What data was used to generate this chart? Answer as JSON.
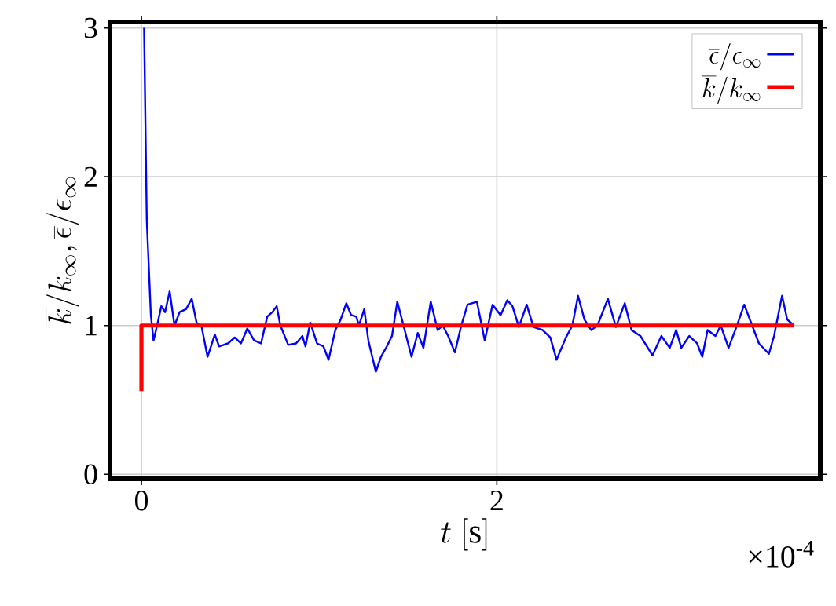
{
  "chart_data": {
    "type": "line",
    "xlabel": "t\\ [\\mathrm{s}]",
    "ylabel": "\\overline{k}/k_\\infty, \\overline{\\epsilon}/\\epsilon_\\infty",
    "xlim": [
      -0.177,
      3.82
    ],
    "xticks": [
      0,
      2
    ],
    "ylim": [
      -0.03,
      3.04
    ],
    "yticks": [
      0,
      1,
      2,
      3
    ],
    "grid": true,
    "legend": "top right",
    "annotations": [
      "×10$^{-4}$"
    ],
    "series": [
      {
        "name": "\\overline{\\epsilon}/\\epsilon_\\infty",
        "color": "#0000ff",
        "x": [
          0.015,
          0.03,
          0.053,
          0.068,
          0.088,
          0.112,
          0.133,
          0.159,
          0.186,
          0.215,
          0.251,
          0.283,
          0.31,
          0.339,
          0.372,
          0.413,
          0.437,
          0.487,
          0.525,
          0.56,
          0.596,
          0.634,
          0.673,
          0.708,
          0.737,
          0.761,
          0.782,
          0.826,
          0.87,
          0.906,
          0.923,
          0.95,
          0.988,
          1.024,
          1.053,
          1.091,
          1.121,
          1.153,
          1.18,
          1.209,
          1.224,
          1.254,
          1.277,
          1.319,
          1.348,
          1.381,
          1.41,
          1.44,
          1.475,
          1.52,
          1.555,
          1.587,
          1.628,
          1.667,
          1.696,
          1.726,
          1.764,
          1.8,
          1.835,
          1.888,
          1.932,
          1.976,
          2.021,
          2.059,
          2.088,
          2.124,
          2.168,
          2.206,
          2.257,
          2.301,
          2.336,
          2.389,
          2.425,
          2.457,
          2.493,
          2.531,
          2.566,
          2.625,
          2.67,
          2.72,
          2.758,
          2.808,
          2.876,
          2.926,
          2.973,
          3.009,
          3.038,
          3.083,
          3.127,
          3.156,
          3.186,
          3.23,
          3.26,
          3.304,
          3.348,
          3.392,
          3.437,
          3.475,
          3.531,
          3.56,
          3.605,
          3.634,
          3.673
        ],
        "values": [
          3.0,
          1.71,
          1.07,
          0.9,
          1.0,
          1.13,
          1.09,
          1.23,
          1.0,
          1.09,
          1.11,
          1.18,
          1.02,
          0.99,
          0.79,
          0.94,
          0.86,
          0.88,
          0.92,
          0.88,
          0.98,
          0.9,
          0.88,
          1.06,
          1.09,
          1.13,
          1.0,
          0.87,
          0.88,
          0.93,
          0.86,
          1.02,
          0.88,
          0.86,
          0.77,
          0.97,
          1.04,
          1.15,
          1.07,
          1.06,
          1.0,
          1.11,
          0.9,
          0.69,
          0.79,
          0.86,
          0.93,
          1.16,
          1.0,
          0.79,
          0.95,
          0.85,
          1.16,
          0.97,
          1.0,
          0.93,
          0.82,
          1.0,
          1.14,
          1.16,
          0.9,
          1.14,
          1.07,
          1.17,
          1.13,
          0.99,
          1.14,
          0.99,
          0.97,
          0.92,
          0.77,
          0.92,
          1.0,
          1.2,
          1.04,
          0.97,
          1.0,
          1.18,
          0.99,
          1.15,
          0.97,
          0.93,
          0.8,
          0.93,
          0.85,
          0.97,
          0.85,
          0.93,
          0.88,
          0.79,
          0.97,
          0.93,
          1.0,
          0.85,
          0.99,
          1.14,
          1.0,
          0.88,
          0.81,
          0.93,
          1.2,
          1.04,
          1.0
        ]
      },
      {
        "name": "\\overline{k}/k_\\infty",
        "color": "#ff0000",
        "x": [
          0,
          0,
          3.673
        ],
        "values": [
          0.56,
          1,
          1
        ]
      }
    ]
  }
}
